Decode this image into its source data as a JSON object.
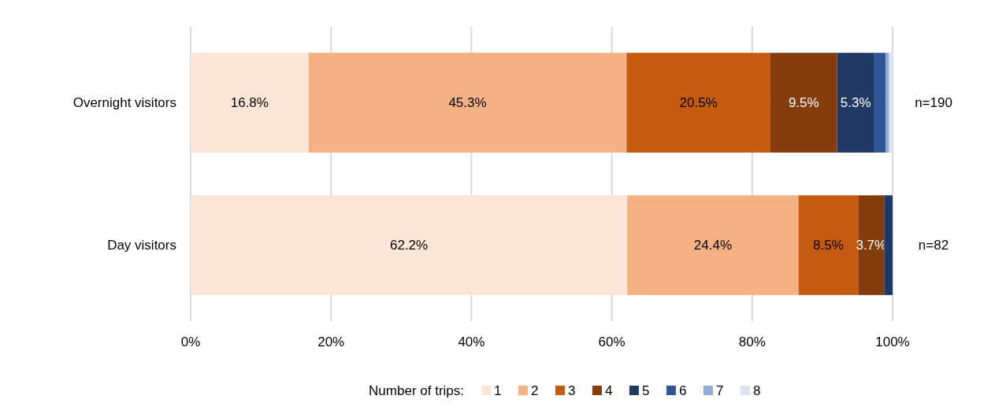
{
  "chart_data": {
    "type": "bar",
    "orientation": "horizontal",
    "stacked": true,
    "categories": [
      "Overnight visitors",
      "Day visitors"
    ],
    "series": [
      {
        "name": "1",
        "color": "#fbe5d6",
        "values": [
          16.8,
          62.2
        ],
        "value_labels": [
          "16.8%",
          "62.2%"
        ]
      },
      {
        "name": "2",
        "color": "#f4b183",
        "values": [
          45.3,
          24.4
        ],
        "value_labels": [
          "45.3%",
          "24.4%"
        ]
      },
      {
        "name": "3",
        "color": "#c55a11",
        "values": [
          20.5,
          8.5
        ],
        "value_labels": [
          "20.5%",
          "8.5%"
        ]
      },
      {
        "name": "4",
        "color": "#843c0c",
        "values": [
          9.5,
          3.7
        ],
        "value_labels": [
          "9.5%",
          "3.7%"
        ]
      },
      {
        "name": "5",
        "color": "#203864",
        "values": [
          5.3,
          1.2
        ],
        "value_labels": [
          "5.3%",
          null
        ]
      },
      {
        "name": "6",
        "color": "#2f5597",
        "values": [
          1.6,
          null
        ],
        "value_labels": [
          null,
          null
        ]
      },
      {
        "name": "7",
        "color": "#8faadc",
        "values": [
          0.5,
          null
        ],
        "value_labels": [
          null,
          null
        ]
      },
      {
        "name": "8",
        "color": "#dae3f3",
        "values": [
          0.5,
          null
        ],
        "value_labels": [
          null,
          null
        ]
      }
    ],
    "xlim": [
      0,
      100
    ],
    "xticks": [
      {
        "value": 0,
        "label": "0%"
      },
      {
        "value": 20,
        "label": "20%"
      },
      {
        "value": 40,
        "label": "40%"
      },
      {
        "value": 60,
        "label": "60%"
      },
      {
        "value": 80,
        "label": "80%"
      },
      {
        "value": 100,
        "label": "100%"
      }
    ],
    "grid": "x",
    "legend": "bottom",
    "legend_title": "Number of trips:",
    "annotations": [
      "n=190",
      "n=82"
    ]
  }
}
